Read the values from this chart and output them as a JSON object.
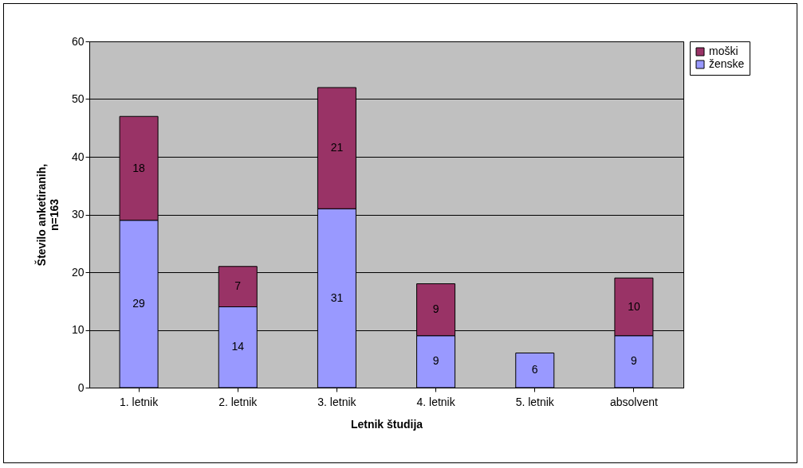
{
  "chart_data": {
    "type": "bar",
    "stacked": true,
    "xlabel": "Letnik študija",
    "ylabel": "Število anketiranih, n=163",
    "categories": [
      "1. letnik",
      "2. letnik",
      "3. letnik",
      "4. letnik",
      "5. letnik",
      "absolvent"
    ],
    "series": [
      {
        "name": "ženske",
        "color": "#9999ff",
        "values": [
          29,
          14,
          31,
          9,
          6,
          9
        ]
      },
      {
        "name": "moški",
        "color": "#993366",
        "values": [
          18,
          7,
          21,
          9,
          null,
          10
        ]
      }
    ],
    "ylim": [
      0,
      60
    ],
    "yticks": [
      0,
      10,
      20,
      30,
      40,
      50,
      60
    ],
    "grid": "y",
    "legend": "right",
    "data_labels": true
  }
}
